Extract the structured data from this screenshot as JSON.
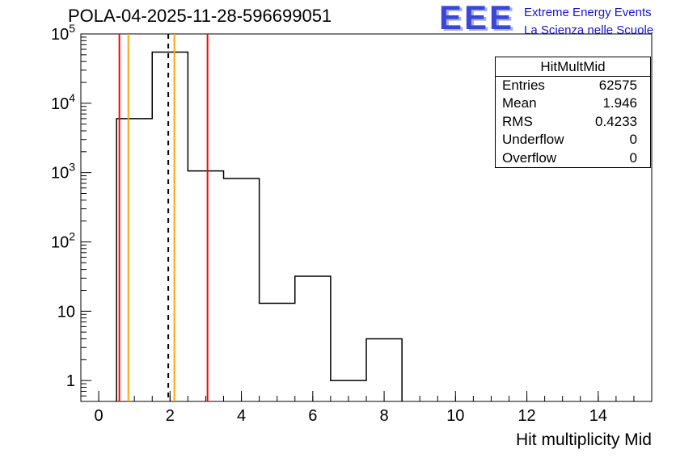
{
  "header": {
    "title": "POLA-04-2025-11-28-596699051",
    "logo": {
      "text": "EEE",
      "line1": "Extreme Energy Events",
      "line2": "La Scienza nelle Scuole",
      "color": "#2222cc"
    }
  },
  "stats_box": {
    "title": "HitMultMid",
    "rows": [
      {
        "label": "Entries",
        "value": "62575"
      },
      {
        "label": "Mean",
        "value": "1.946"
      },
      {
        "label": "RMS",
        "value": "0.4233"
      },
      {
        "label": "Underflow",
        "value": "0"
      },
      {
        "label": "Overflow",
        "value": "0"
      }
    ]
  },
  "chart_data": {
    "type": "bar",
    "subtype": "step-histogram",
    "title": "POLA-04-2025-11-28-596699051",
    "xlabel": "Hit multiplicity Mid",
    "ylabel": "",
    "x_range": [
      -0.5,
      15.5
    ],
    "y_range": [
      0.5,
      100000
    ],
    "y_scale": "log",
    "bin_width": 1,
    "bin_centers": [
      1,
      2,
      3,
      4,
      5,
      6,
      7,
      8
    ],
    "counts": [
      6000,
      54650,
      1055,
      820,
      13,
      32,
      1,
      4
    ],
    "x_ticks": {
      "major": [
        0,
        2,
        4,
        6,
        8,
        10,
        12,
        14
      ],
      "labels": [
        "0",
        "2",
        "4",
        "6",
        "8",
        "10",
        "12",
        "14"
      ],
      "minor_step": 0.5
    },
    "y_ticks": {
      "values": [
        1,
        10,
        100,
        1000,
        10000,
        100000
      ],
      "labels": [
        "1",
        "10",
        "10^2",
        "10^3",
        "10^4",
        "10^5"
      ]
    },
    "line_color": "#000000",
    "markers": [
      {
        "x": 0.58,
        "color": "#ff0000",
        "style": "solid",
        "name": "red-lower-line"
      },
      {
        "x": 0.83,
        "color": "#ffa500",
        "style": "solid",
        "name": "orange-lower-line"
      },
      {
        "x": 1.95,
        "color": "#000000",
        "style": "dashed",
        "name": "mean-dashed-line"
      },
      {
        "x": 2.12,
        "color": "#ffa500",
        "style": "solid",
        "name": "orange-upper-line"
      },
      {
        "x": 3.05,
        "color": "#ff0000",
        "style": "solid",
        "name": "red-upper-line"
      }
    ]
  }
}
